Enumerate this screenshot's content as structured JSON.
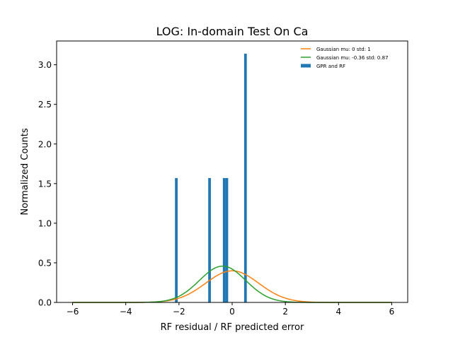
{
  "chart_data": {
    "type": "bar",
    "title": "LOG: In-domain Test On Ca",
    "xlabel": "RF residual / RF predicted error",
    "ylabel": "Normalized Counts",
    "xlim": [
      -6.6,
      6.6
    ],
    "ylim": [
      0,
      3.3
    ],
    "xticks": [
      -6,
      -4,
      -2,
      0,
      2,
      4,
      6
    ],
    "xtick_labels": [
      "−6",
      "−4",
      "−2",
      "0",
      "2",
      "4",
      "6"
    ],
    "yticks": [
      0.0,
      0.5,
      1.0,
      1.5,
      2.0,
      2.5,
      3.0
    ],
    "ytick_labels": [
      "0.0",
      "0.5",
      "1.0",
      "1.5",
      "2.0",
      "2.5",
      "3.0"
    ],
    "grid": false,
    "legend_position": "top-right",
    "histogram": {
      "name": "GPR and RF",
      "color": "#1f77b4",
      "bin_width": 0.1,
      "bins": [
        {
          "x": -2.1,
          "height": 1.57
        },
        {
          "x": -0.85,
          "height": 1.57
        },
        {
          "x": -0.3,
          "height": 1.57
        },
        {
          "x": -0.2,
          "height": 1.57
        },
        {
          "x": 0.5,
          "height": 3.14
        }
      ]
    },
    "series": [
      {
        "name": "Gaussian mu: 0 std: 1",
        "color": "#ff7f0e",
        "mu": 0,
        "sigma": 1,
        "x_range": [
          -6,
          6
        ]
      },
      {
        "name": "Gaussian mu: -0.36 std: 0.87",
        "color": "#2ca02c",
        "mu": -0.36,
        "sigma": 0.87,
        "x_range": [
          -6,
          6
        ]
      }
    ]
  }
}
